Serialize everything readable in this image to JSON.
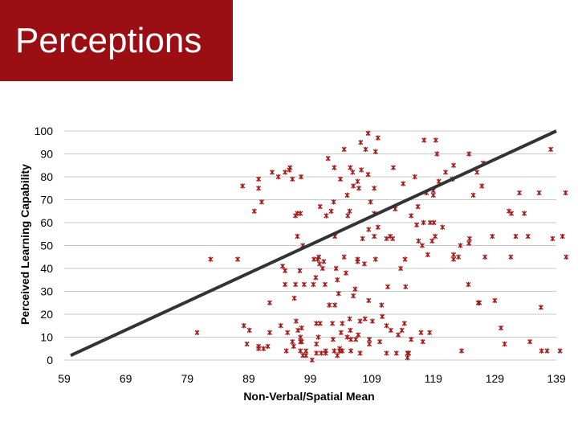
{
  "slide": {
    "title": "Perceptions"
  },
  "colors": {
    "title_bg": "#9b0f14",
    "point": "#a01818",
    "trendline": "#333333",
    "grid": "#c8c8c8"
  },
  "chart_data": {
    "type": "scatter",
    "xlabel": "Non-Verbal/Spatial Mean",
    "ylabel": "Perceived Learning Capability",
    "xlim": [
      59,
      139
    ],
    "ylim": [
      0,
      100
    ],
    "x_ticks": [
      "59",
      "69",
      "79",
      "89",
      "99",
      "109",
      "119",
      "129",
      "139"
    ],
    "y_ticks": [
      "0",
      "10",
      "20",
      "30",
      "40",
      "50",
      "60",
      "70",
      "80",
      "90",
      "100"
    ],
    "grid": "horizontal",
    "trendline": {
      "x": [
        59,
        139
      ],
      "y": [
        2,
        100
      ]
    },
    "points": [
      [
        80.6,
        12
      ],
      [
        82.8,
        44
      ],
      [
        87.2,
        44
      ],
      [
        88.0,
        76
      ],
      [
        88.2,
        15
      ],
      [
        88.7,
        7
      ],
      [
        89.1,
        13
      ],
      [
        89.9,
        65
      ],
      [
        90.6,
        79
      ],
      [
        90.6,
        75
      ],
      [
        90.6,
        6
      ],
      [
        90.6,
        5
      ],
      [
        91.1,
        69
      ],
      [
        91.4,
        5
      ],
      [
        92.1,
        6
      ],
      [
        92.4,
        25
      ],
      [
        92.4,
        12
      ],
      [
        92.8,
        82
      ],
      [
        93.8,
        80
      ],
      [
        94.2,
        15
      ],
      [
        94.5,
        41
      ],
      [
        94.9,
        82
      ],
      [
        94.9,
        39
      ],
      [
        94.9,
        33
      ],
      [
        95.1,
        4
      ],
      [
        95.3,
        12
      ],
      [
        95.6,
        83
      ],
      [
        95.7,
        84
      ],
      [
        96.1,
        79
      ],
      [
        96.1,
        8
      ],
      [
        96.3,
        6
      ],
      [
        96.4,
        27
      ],
      [
        96.6,
        63
      ],
      [
        96.6,
        33
      ],
      [
        96.7,
        17
      ],
      [
        96.9,
        64
      ],
      [
        96.9,
        54
      ],
      [
        97.0,
        13
      ],
      [
        97.3,
        39
      ],
      [
        97.4,
        4
      ],
      [
        97.4,
        8
      ],
      [
        97.4,
        10
      ],
      [
        97.4,
        64
      ],
      [
        97.5,
        80
      ],
      [
        97.6,
        14
      ],
      [
        97.6,
        8
      ],
      [
        97.8,
        2
      ],
      [
        97.8,
        50
      ],
      [
        98.0,
        33
      ],
      [
        98.3,
        4
      ],
      [
        98.3,
        2
      ],
      [
        99.3,
        0
      ],
      [
        99.5,
        33
      ],
      [
        99.6,
        44
      ],
      [
        99.9,
        36
      ],
      [
        100.0,
        7
      ],
      [
        100.0,
        3
      ],
      [
        100.0,
        16
      ],
      [
        100.2,
        44
      ],
      [
        100.3,
        10
      ],
      [
        100.4,
        45
      ],
      [
        100.5,
        42
      ],
      [
        100.6,
        16
      ],
      [
        100.6,
        67
      ],
      [
        100.8,
        3
      ],
      [
        101.0,
        40
      ],
      [
        101.2,
        43
      ],
      [
        101.4,
        33
      ],
      [
        101.5,
        3
      ],
      [
        101.5,
        4
      ],
      [
        101.6,
        63
      ],
      [
        101.9,
        88
      ],
      [
        102.1,
        24
      ],
      [
        102.4,
        65
      ],
      [
        102.6,
        16
      ],
      [
        102.7,
        9
      ],
      [
        102.8,
        69
      ],
      [
        102.9,
        84
      ],
      [
        102.9,
        4
      ],
      [
        103.0,
        54
      ],
      [
        103.0,
        24
      ],
      [
        103.2,
        40
      ],
      [
        103.4,
        35
      ],
      [
        103.4,
        2
      ],
      [
        103.6,
        29
      ],
      [
        103.8,
        4
      ],
      [
        103.8,
        5
      ],
      [
        103.9,
        79
      ],
      [
        104.0,
        12
      ],
      [
        104.2,
        4
      ],
      [
        104.2,
        16
      ],
      [
        104.5,
        92
      ],
      [
        104.5,
        45
      ],
      [
        104.8,
        38
      ],
      [
        105.0,
        72
      ],
      [
        105.0,
        10
      ],
      [
        105.1,
        63
      ],
      [
        105.4,
        18
      ],
      [
        105.4,
        65
      ],
      [
        105.5,
        84
      ],
      [
        105.5,
        13
      ],
      [
        105.6,
        4
      ],
      [
        105.6,
        9
      ],
      [
        105.9,
        82
      ],
      [
        106.0,
        76
      ],
      [
        106.0,
        28
      ],
      [
        106.3,
        31
      ],
      [
        106.4,
        9
      ],
      [
        106.7,
        78
      ],
      [
        106.7,
        44
      ],
      [
        106.7,
        43
      ],
      [
        106.8,
        11
      ],
      [
        106.9,
        75
      ],
      [
        107.1,
        3
      ],
      [
        107.1,
        17
      ],
      [
        107.2,
        95
      ],
      [
        107.3,
        83
      ],
      [
        107.5,
        53
      ],
      [
        107.8,
        42
      ],
      [
        107.9,
        18
      ],
      [
        108.0,
        92
      ],
      [
        108.4,
        99
      ],
      [
        108.4,
        81
      ],
      [
        108.5,
        57
      ],
      [
        108.5,
        26
      ],
      [
        108.6,
        7
      ],
      [
        108.6,
        9
      ],
      [
        108.8,
        69
      ],
      [
        109.1,
        17
      ],
      [
        109.4,
        64
      ],
      [
        109.4,
        75
      ],
      [
        109.4,
        54
      ],
      [
        109.6,
        91
      ],
      [
        109.6,
        44
      ],
      [
        110.0,
        97
      ],
      [
        110.0,
        58
      ],
      [
        110.3,
        8
      ],
      [
        110.6,
        24
      ],
      [
        110.7,
        19
      ],
      [
        111.4,
        15
      ],
      [
        111.4,
        53
      ],
      [
        111.4,
        3
      ],
      [
        111.6,
        32
      ],
      [
        112.0,
        54
      ],
      [
        112.1,
        13
      ],
      [
        112.4,
        53
      ],
      [
        112.5,
        84
      ],
      [
        112.8,
        66
      ],
      [
        113.0,
        3
      ],
      [
        113.3,
        11
      ],
      [
        113.7,
        40
      ],
      [
        113.9,
        13
      ],
      [
        114.1,
        77
      ],
      [
        114.3,
        16
      ],
      [
        114.4,
        44
      ],
      [
        114.5,
        32
      ],
      [
        114.8,
        3
      ],
      [
        114.8,
        1
      ],
      [
        115.0,
        3
      ],
      [
        115.4,
        63
      ],
      [
        115.4,
        9
      ],
      [
        116.0,
        80
      ],
      [
        116.3,
        59
      ],
      [
        116.5,
        67
      ],
      [
        116.6,
        52
      ],
      [
        117.0,
        12
      ],
      [
        117.2,
        50
      ],
      [
        117.3,
        8
      ],
      [
        117.4,
        60
      ],
      [
        117.5,
        96
      ],
      [
        117.9,
        73
      ],
      [
        118.1,
        46
      ],
      [
        118.4,
        12
      ],
      [
        118.5,
        60
      ],
      [
        118.8,
        52
      ],
      [
        119.0,
        72
      ],
      [
        119.0,
        74
      ],
      [
        119.1,
        60
      ],
      [
        119.3,
        54
      ],
      [
        119.4,
        96
      ],
      [
        119.6,
        90
      ],
      [
        119.9,
        78
      ],
      [
        120.5,
        58
      ],
      [
        121.0,
        82
      ],
      [
        122.1,
        79
      ],
      [
        122.3,
        85
      ],
      [
        122.3,
        46
      ],
      [
        122.3,
        44
      ],
      [
        123.1,
        45
      ],
      [
        123.4,
        50
      ],
      [
        123.6,
        4
      ],
      [
        124.7,
        33
      ],
      [
        124.8,
        90
      ],
      [
        124.8,
        51
      ],
      [
        124.9,
        53
      ],
      [
        125.5,
        72
      ],
      [
        126.1,
        82
      ],
      [
        126.3,
        25
      ],
      [
        126.5,
        25
      ],
      [
        126.9,
        76
      ],
      [
        127.1,
        86
      ],
      [
        127.4,
        45
      ],
      [
        128.6,
        54
      ],
      [
        129.0,
        26
      ],
      [
        130.0,
        14
      ],
      [
        130.6,
        7
      ],
      [
        131.3,
        65
      ],
      [
        131.6,
        45
      ],
      [
        131.7,
        64
      ],
      [
        132.4,
        54
      ],
      [
        133.0,
        73
      ],
      [
        133.8,
        64
      ],
      [
        134.4,
        54
      ],
      [
        134.7,
        8
      ],
      [
        136.2,
        73
      ],
      [
        136.5,
        23
      ],
      [
        136.6,
        4
      ],
      [
        137.5,
        4
      ],
      [
        138.1,
        92
      ],
      [
        138.4,
        53
      ],
      [
        140.0,
        54
      ],
      [
        139.6,
        4
      ],
      [
        140.5,
        73
      ],
      [
        140.6,
        45
      ]
    ]
  }
}
